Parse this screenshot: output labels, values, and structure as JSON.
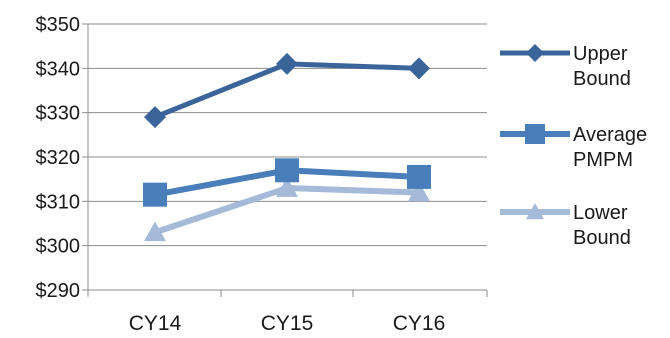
{
  "chart_data": {
    "type": "line",
    "categories": [
      "CY14",
      "CY15",
      "CY16"
    ],
    "ylim": [
      290,
      350
    ],
    "y_ticks": [
      290,
      300,
      310,
      320,
      330,
      340,
      350
    ],
    "y_tick_format": "$",
    "grid": "horizontal",
    "legend_position": "right",
    "series": [
      {
        "name": "Upper Bound",
        "legend_lines": [
          "Upper",
          "Bound"
        ],
        "values": [
          329,
          341,
          340
        ],
        "color": "#3b649a",
        "marker": "diamond"
      },
      {
        "name": "Average PMPM",
        "legend_lines": [
          "Average",
          "PMPM"
        ],
        "values": [
          311.5,
          317,
          315.5
        ],
        "color": "#4a7ebb",
        "marker": "square"
      },
      {
        "name": "Lower Bound",
        "legend_lines": [
          "Lower",
          "Bound"
        ],
        "values": [
          303,
          313,
          312
        ],
        "color": "#a5b9d9",
        "marker": "triangle"
      }
    ]
  }
}
